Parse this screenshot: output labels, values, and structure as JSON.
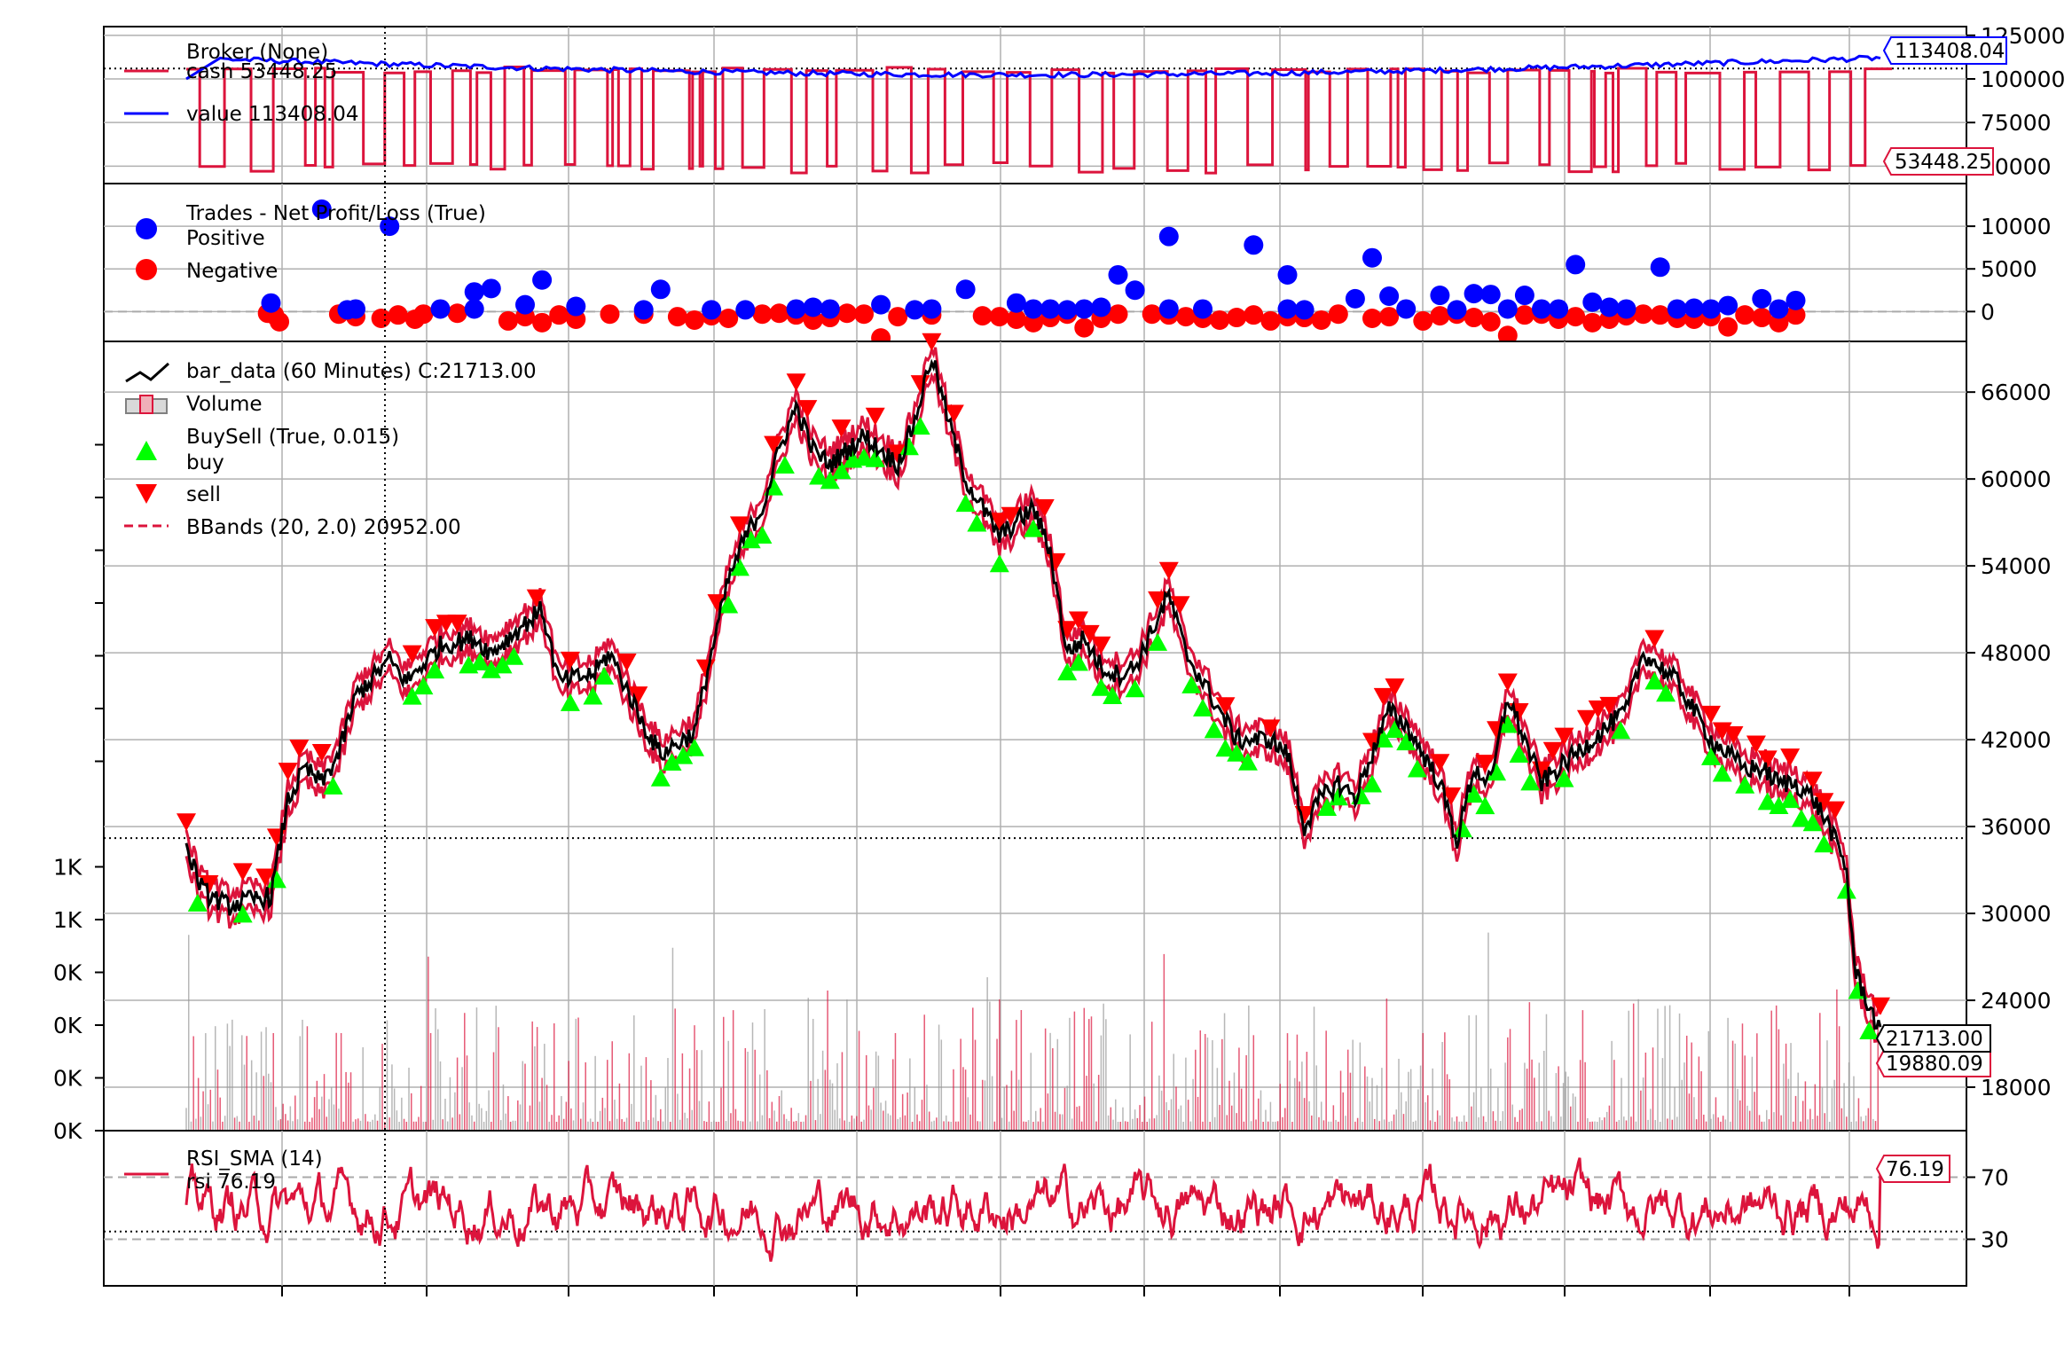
{
  "chart_data": [
    {
      "panel": "broker",
      "type": "line",
      "ylim": [
        40000,
        130000
      ],
      "yticks": [
        50000,
        75000,
        100000,
        125000
      ],
      "ytick_labels": [
        "50000",
        "75000",
        "100000",
        "125000"
      ],
      "legend": {
        "title": "Broker (None)",
        "entries": [
          {
            "label": "cash 53448.25",
            "color": "#dc143c"
          },
          {
            "label": "value 113408.04",
            "color": "#0000ff"
          }
        ]
      },
      "series": [
        {
          "name": "cash",
          "color": "#dc143c",
          "last": 53448.25,
          "last_label": "53448.25"
        },
        {
          "name": "value",
          "color": "#0000ff",
          "last": 113408.04,
          "last_label": "113408.04"
        }
      ],
      "reference_line": 106000
    },
    {
      "panel": "trades",
      "type": "scatter",
      "ylim": [
        -3500,
        15000
      ],
      "yticks": [
        0,
        5000,
        10000
      ],
      "ytick_labels": [
        "0",
        "5000",
        "10000"
      ],
      "legend": {
        "title": "Trades - Net Profit/Loss (True)",
        "entries": [
          {
            "label": "Positive",
            "color": "#0000ff"
          },
          {
            "label": "Negative",
            "color": "#ff0000"
          }
        ]
      },
      "positive": [
        [
          0.05,
          1000
        ],
        [
          0.08,
          12000
        ],
        [
          0.095,
          200
        ],
        [
          0.1,
          300
        ],
        [
          0.12,
          10000
        ],
        [
          0.15,
          300
        ],
        [
          0.17,
          300
        ],
        [
          0.17,
          2300
        ],
        [
          0.18,
          2700
        ],
        [
          0.2,
          800
        ],
        [
          0.21,
          3700
        ],
        [
          0.23,
          600
        ],
        [
          0.27,
          200
        ],
        [
          0.28,
          2600
        ],
        [
          0.31,
          200
        ],
        [
          0.33,
          200
        ],
        [
          0.36,
          300
        ],
        [
          0.37,
          500
        ],
        [
          0.38,
          300
        ],
        [
          0.41,
          800
        ],
        [
          0.43,
          200
        ],
        [
          0.44,
          300
        ],
        [
          0.46,
          2600
        ],
        [
          0.49,
          1000
        ],
        [
          0.5,
          300
        ],
        [
          0.51,
          300
        ],
        [
          0.52,
          200
        ],
        [
          0.53,
          300
        ],
        [
          0.54,
          500
        ],
        [
          0.55,
          4300
        ],
        [
          0.56,
          2500
        ],
        [
          0.58,
          8800
        ],
        [
          0.58,
          300
        ],
        [
          0.6,
          300
        ],
        [
          0.63,
          7800
        ],
        [
          0.65,
          4300
        ],
        [
          0.65,
          300
        ],
        [
          0.66,
          200
        ],
        [
          0.69,
          1500
        ],
        [
          0.7,
          6300
        ],
        [
          0.71,
          1800
        ],
        [
          0.72,
          300
        ],
        [
          0.74,
          1900
        ],
        [
          0.75,
          200
        ],
        [
          0.76,
          2100
        ],
        [
          0.77,
          2000
        ],
        [
          0.78,
          300
        ],
        [
          0.79,
          1900
        ],
        [
          0.8,
          300
        ],
        [
          0.81,
          300
        ],
        [
          0.82,
          5500
        ],
        [
          0.83,
          1100
        ],
        [
          0.84,
          500
        ],
        [
          0.85,
          300
        ],
        [
          0.87,
          5200
        ],
        [
          0.88,
          300
        ],
        [
          0.89,
          400
        ],
        [
          0.9,
          300
        ],
        [
          0.91,
          700
        ],
        [
          0.93,
          1500
        ],
        [
          0.94,
          300
        ],
        [
          0.95,
          1300
        ]
      ],
      "negative": [
        [
          0.048,
          -200
        ],
        [
          0.052,
          -400
        ],
        [
          0.055,
          -1200
        ],
        [
          0.09,
          -300
        ],
        [
          0.1,
          -600
        ],
        [
          0.115,
          -800
        ],
        [
          0.125,
          -400
        ],
        [
          0.135,
          -900
        ],
        [
          0.14,
          -300
        ],
        [
          0.16,
          -200
        ],
        [
          0.19,
          -1100
        ],
        [
          0.2,
          -600
        ],
        [
          0.21,
          -1300
        ],
        [
          0.22,
          -400
        ],
        [
          0.23,
          -900
        ],
        [
          0.25,
          -300
        ],
        [
          0.27,
          -300
        ],
        [
          0.29,
          -600
        ],
        [
          0.3,
          -1000
        ],
        [
          0.31,
          -500
        ],
        [
          0.32,
          -800
        ],
        [
          0.34,
          -300
        ],
        [
          0.35,
          -200
        ],
        [
          0.36,
          -400
        ],
        [
          0.37,
          -1000
        ],
        [
          0.38,
          -700
        ],
        [
          0.39,
          -200
        ],
        [
          0.4,
          -300
        ],
        [
          0.41,
          -3100
        ],
        [
          0.42,
          -600
        ],
        [
          0.44,
          -400
        ],
        [
          0.47,
          -500
        ],
        [
          0.48,
          -600
        ],
        [
          0.49,
          -900
        ],
        [
          0.5,
          -1300
        ],
        [
          0.51,
          -700
        ],
        [
          0.52,
          -300
        ],
        [
          0.53,
          -1900
        ],
        [
          0.54,
          -800
        ],
        [
          0.55,
          -300
        ],
        [
          0.57,
          -300
        ],
        [
          0.58,
          -400
        ],
        [
          0.59,
          -600
        ],
        [
          0.6,
          -800
        ],
        [
          0.61,
          -1000
        ],
        [
          0.62,
          -700
        ],
        [
          0.63,
          -400
        ],
        [
          0.64,
          -1100
        ],
        [
          0.65,
          -600
        ],
        [
          0.66,
          -700
        ],
        [
          0.67,
          -1000
        ],
        [
          0.68,
          -300
        ],
        [
          0.7,
          -800
        ],
        [
          0.71,
          -600
        ],
        [
          0.73,
          -1100
        ],
        [
          0.74,
          -500
        ],
        [
          0.75,
          -300
        ],
        [
          0.76,
          -700
        ],
        [
          0.77,
          -1200
        ],
        [
          0.78,
          -2800
        ],
        [
          0.79,
          -400
        ],
        [
          0.8,
          -300
        ],
        [
          0.81,
          -900
        ],
        [
          0.82,
          -600
        ],
        [
          0.83,
          -1300
        ],
        [
          0.84,
          -900
        ],
        [
          0.85,
          -500
        ],
        [
          0.86,
          -300
        ],
        [
          0.87,
          -400
        ],
        [
          0.88,
          -800
        ],
        [
          0.89,
          -900
        ],
        [
          0.9,
          -600
        ],
        [
          0.91,
          -1800
        ],
        [
          0.92,
          -400
        ],
        [
          0.93,
          -700
        ],
        [
          0.94,
          -1300
        ],
        [
          0.95,
          -400
        ]
      ]
    },
    {
      "panel": "price",
      "type": "line",
      "ylim": [
        15000,
        69500
      ],
      "yticks": [
        18000,
        24000,
        30000,
        36000,
        42000,
        48000,
        54000,
        60000,
        66000
      ],
      "ytick_labels": [
        "18000",
        "24000",
        "30000",
        "36000",
        "42000",
        "48000",
        "54000",
        "60000",
        "66000"
      ],
      "volume_tick_labels": [
        "0K",
        "0K",
        "0K",
        "0K",
        "1K",
        "1K"
      ],
      "legend": {
        "entries": [
          {
            "label": "bar_data (60 Minutes) C:21713.00",
            "color": "#000000"
          },
          {
            "label": "Volume",
            "color": "#d9a0a8"
          },
          {
            "label": "BuySell (True, 0.015)",
            "color": "#ffffff"
          },
          {
            "label": "buy",
            "color": "#00ff00"
          },
          {
            "label": "sell",
            "color": "#ff0000"
          },
          {
            "label": "BBands (20, 2.0) 20952.00",
            "color": "#dc143c"
          }
        ]
      },
      "close_path": [
        [
          0.0,
          34500
        ],
        [
          0.01,
          31500
        ],
        [
          0.025,
          30500
        ],
        [
          0.04,
          31000
        ],
        [
          0.05,
          31200
        ],
        [
          0.06,
          37800
        ],
        [
          0.07,
          40000
        ],
        [
          0.08,
          39000
        ],
        [
          0.09,
          41000
        ],
        [
          0.1,
          45000
        ],
        [
          0.12,
          47500
        ],
        [
          0.13,
          46000
        ],
        [
          0.15,
          48500
        ],
        [
          0.17,
          49000
        ],
        [
          0.18,
          48000
        ],
        [
          0.2,
          50000
        ],
        [
          0.21,
          51000
        ],
        [
          0.22,
          46000
        ],
        [
          0.24,
          46500
        ],
        [
          0.25,
          48000
        ],
        [
          0.27,
          43000
        ],
        [
          0.28,
          41000
        ],
        [
          0.3,
          42500
        ],
        [
          0.31,
          48000
        ],
        [
          0.32,
          53000
        ],
        [
          0.33,
          56000
        ],
        [
          0.34,
          58000
        ],
        [
          0.35,
          62000
        ],
        [
          0.36,
          65000
        ],
        [
          0.37,
          62000
        ],
        [
          0.38,
          61000
        ],
        [
          0.4,
          63000
        ],
        [
          0.41,
          62000
        ],
        [
          0.42,
          61000
        ],
        [
          0.43,
          64000
        ],
        [
          0.44,
          68500
        ],
        [
          0.45,
          64000
        ],
        [
          0.46,
          60000
        ],
        [
          0.47,
          58000
        ],
        [
          0.48,
          56000
        ],
        [
          0.49,
          57000
        ],
        [
          0.5,
          58000
        ],
        [
          0.51,
          55000
        ],
        [
          0.52,
          48000
        ],
        [
          0.53,
          49000
        ],
        [
          0.54,
          47000
        ],
        [
          0.55,
          46500
        ],
        [
          0.56,
          47000
        ],
        [
          0.58,
          52000
        ],
        [
          0.59,
          48000
        ],
        [
          0.6,
          46000
        ],
        [
          0.61,
          44000
        ],
        [
          0.62,
          42000
        ],
        [
          0.63,
          42000
        ],
        [
          0.64,
          42000
        ],
        [
          0.65,
          41000
        ],
        [
          0.66,
          36000
        ],
        [
          0.67,
          38000
        ],
        [
          0.68,
          39000
        ],
        [
          0.69,
          38000
        ],
        [
          0.7,
          41000
        ],
        [
          0.71,
          44000
        ],
        [
          0.72,
          43000
        ],
        [
          0.73,
          41000
        ],
        [
          0.74,
          39000
        ],
        [
          0.75,
          35000
        ],
        [
          0.76,
          40000
        ],
        [
          0.77,
          39000
        ],
        [
          0.78,
          45000
        ],
        [
          0.79,
          42000
        ],
        [
          0.8,
          39000
        ],
        [
          0.81,
          40000
        ],
        [
          0.82,
          41000
        ],
        [
          0.83,
          42000
        ],
        [
          0.84,
          43000
        ],
        [
          0.85,
          44000
        ],
        [
          0.86,
          48000
        ],
        [
          0.87,
          47000
        ],
        [
          0.88,
          46000
        ],
        [
          0.89,
          44000
        ],
        [
          0.9,
          42000
        ],
        [
          0.91,
          41000
        ],
        [
          0.92,
          40000
        ],
        [
          0.93,
          40000
        ],
        [
          0.94,
          39000
        ],
        [
          0.95,
          39000
        ],
        [
          0.96,
          38000
        ],
        [
          0.97,
          36000
        ],
        [
          0.98,
          33000
        ],
        [
          0.985,
          26000
        ],
        [
          1.0,
          21713
        ]
      ],
      "last_close": 21713.0,
      "last_close_label": "21713.00",
      "bband_last_label": "19880.09",
      "reference_line": 35200
    },
    {
      "panel": "rsi",
      "type": "line",
      "ylim": [
        0,
        100
      ],
      "yticks": [
        30,
        70
      ],
      "ytick_labels": [
        "30",
        "70"
      ],
      "legend": {
        "title": "RSI_SMA (14)",
        "entries": [
          {
            "label": "rsi 76.19",
            "color": "#dc143c"
          }
        ]
      },
      "hlines": [
        30,
        70
      ],
      "reference_line": 35,
      "last": 76.19,
      "last_label": "76.19"
    }
  ]
}
